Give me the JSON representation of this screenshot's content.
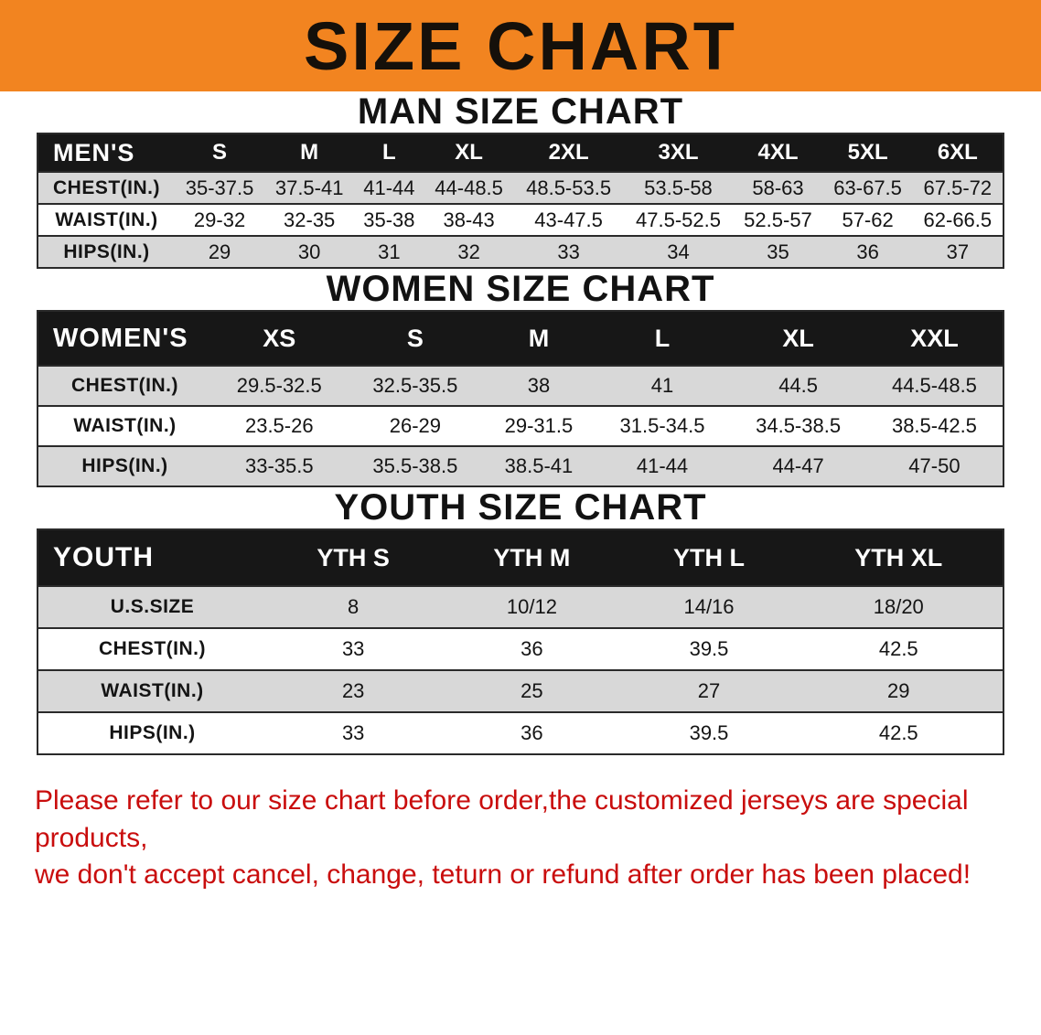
{
  "banner": {
    "title": "SIZE CHART"
  },
  "colors": {
    "banner_bg": "#f28420",
    "header_bg": "#171717",
    "row_alt": "#d8d8d8",
    "disclaimer_red": "#c90d0d"
  },
  "sections": [
    {
      "heading": "MAN SIZE CHART",
      "table": {
        "header": [
          "MEN'S",
          "S",
          "M",
          "L",
          "XL",
          "2XL",
          "3XL",
          "4XL",
          "5XL",
          "6XL"
        ],
        "rows": [
          [
            "CHEST(IN.)",
            "35-37.5",
            "37.5-41",
            "41-44",
            "44-48.5",
            "48.5-53.5",
            "53.5-58",
            "58-63",
            "63-67.5",
            "67.5-72"
          ],
          [
            "WAIST(IN.)",
            "29-32",
            "32-35",
            "35-38",
            "38-43",
            "43-47.5",
            "47.5-52.5",
            "52.5-57",
            "57-62",
            "62-66.5"
          ],
          [
            "HIPS(IN.)",
            "29",
            "30",
            "31",
            "32",
            "33",
            "34",
            "35",
            "36",
            "37"
          ]
        ]
      }
    },
    {
      "heading": "WOMEN SIZE CHART",
      "table": {
        "header": [
          "WOMEN'S",
          "XS",
          "S",
          "M",
          "L",
          "XL",
          "XXL"
        ],
        "rows": [
          [
            "CHEST(IN.)",
            "29.5-32.5",
            "32.5-35.5",
            "38",
            "41",
            "44.5",
            "44.5-48.5"
          ],
          [
            "WAIST(IN.)",
            "23.5-26",
            "26-29",
            "29-31.5",
            "31.5-34.5",
            "34.5-38.5",
            "38.5-42.5"
          ],
          [
            "HIPS(IN.)",
            "33-35.5",
            "35.5-38.5",
            "38.5-41",
            "41-44",
            "44-47",
            "47-50"
          ]
        ]
      }
    },
    {
      "heading": "YOUTH SIZE CHART",
      "table": {
        "header": [
          "YOUTH",
          "YTH S",
          "YTH M",
          "YTH L",
          "YTH XL"
        ],
        "rows": [
          [
            "U.S.SIZE",
            "8",
            "10/12",
            "14/16",
            "18/20"
          ],
          [
            "CHEST(IN.)",
            "33",
            "36",
            "39.5",
            "42.5"
          ],
          [
            "WAIST(IN.)",
            "23",
            "25",
            "27",
            "29"
          ],
          [
            "HIPS(IN.)",
            "33",
            "36",
            "39.5",
            "42.5"
          ]
        ]
      }
    }
  ],
  "disclaimer": {
    "line1": "Please refer to our size chart before order,the customized jerseys are special products,",
    "line2": "we don't accept cancel, change, teturn or refund after order has been placed!"
  }
}
